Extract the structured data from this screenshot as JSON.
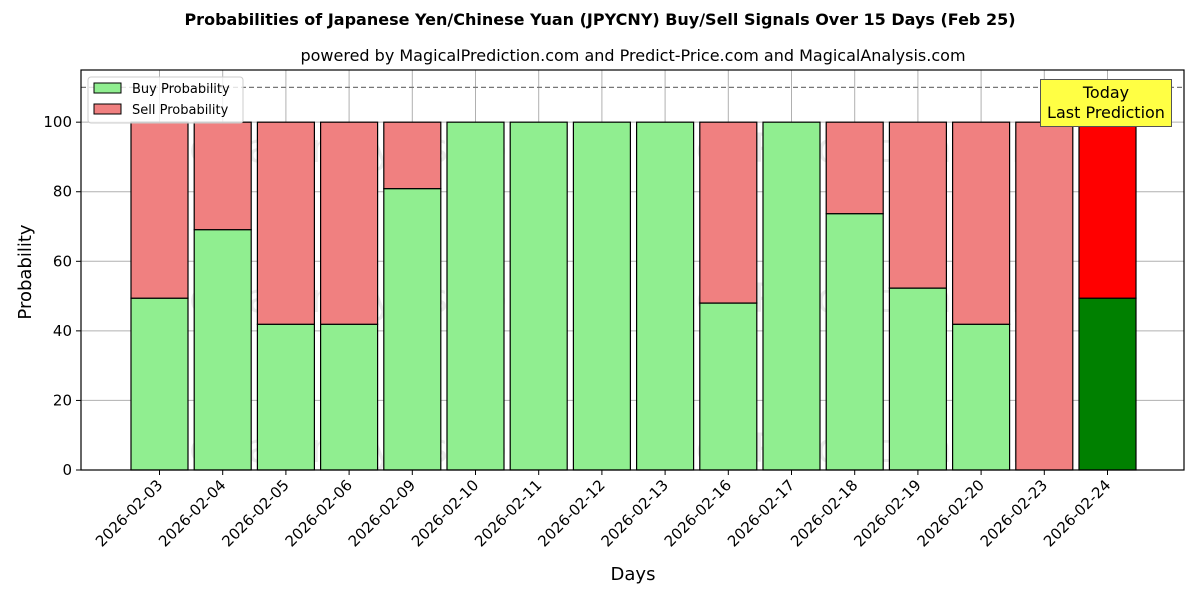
{
  "chart_data": {
    "type": "bar",
    "stacked": true,
    "title": "Probabilities of Japanese Yen/Chinese Yuan (JPYCNY) Buy/Sell Signals Over 15 Days (Feb 25)",
    "subtitle": "powered by MagicalPrediction.com and Predict-Price.com and MagicalAnalysis.com",
    "xlabel": "Days",
    "ylabel": "Probability",
    "ylim": [
      0,
      115
    ],
    "yticks": [
      0,
      20,
      40,
      60,
      80,
      100
    ],
    "grid": true,
    "legend_position": "upper left",
    "reference_line": {
      "y": 110,
      "style": "dashed"
    },
    "categories": [
      "2026-02-03",
      "2026-02-04",
      "2026-02-05",
      "2026-02-06",
      "2026-02-09",
      "2026-02-10",
      "2026-02-11",
      "2026-02-12",
      "2026-02-13",
      "2026-02-16",
      "2026-02-17",
      "2026-02-18",
      "2026-02-19",
      "2026-02-20",
      "2026-02-23",
      "2026-02-24"
    ],
    "series": [
      {
        "name": "Buy Probability",
        "color": "#90ee90",
        "values": [
          49.4,
          69.1,
          41.9,
          41.9,
          80.9,
          100,
          100,
          100,
          100,
          48.0,
          100,
          73.7,
          52.3,
          41.9,
          0,
          49.4
        ]
      },
      {
        "name": "Sell Probability",
        "color": "#f08080",
        "values": [
          50.6,
          30.9,
          58.1,
          58.1,
          19.1,
          0,
          0,
          0,
          0,
          52.0,
          0,
          26.3,
          47.7,
          58.1,
          100,
          50.6
        ]
      }
    ],
    "highlight": {
      "index": 15,
      "buy_color": "#008000",
      "sell_color": "#ff0000"
    },
    "annotation": {
      "text": [
        "Today",
        "Last Prediction"
      ],
      "bg": "#ffff44"
    },
    "watermarks": [
      "MagicalAnalysis.com",
      "MagicalPrediction.com"
    ]
  },
  "legend": {
    "buy": "Buy Probability",
    "sell": "Sell Probability"
  },
  "annotation_line1": "Today",
  "annotation_line2": "Last Prediction"
}
